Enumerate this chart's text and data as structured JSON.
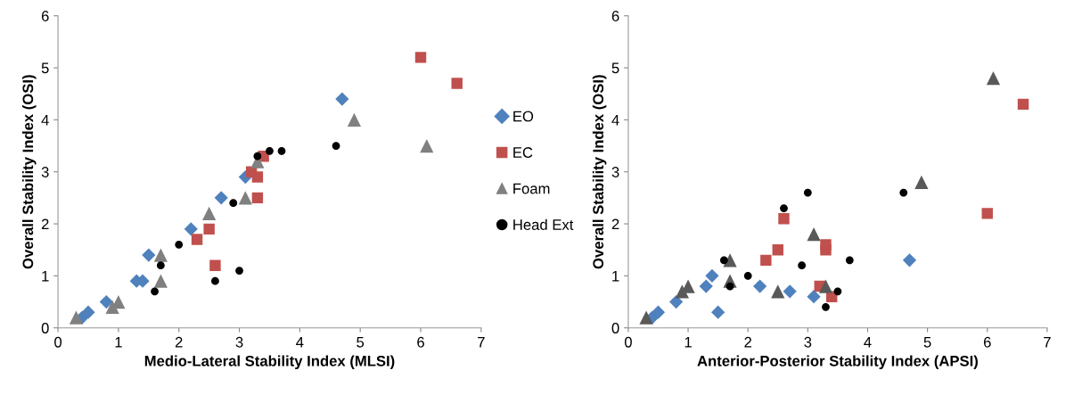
{
  "chart_data": [
    {
      "type": "scatter",
      "xlabel": "Medio-Lateral Stability Index (MLSI)",
      "ylabel": "Overall Stability Index (OSI)",
      "xlim": [
        0,
        7
      ],
      "ylim": [
        0,
        6
      ],
      "xticks": [
        0,
        1,
        2,
        3,
        4,
        5,
        6,
        7
      ],
      "yticks": [
        0,
        1,
        2,
        3,
        4,
        5,
        6
      ],
      "grid": false,
      "legend": "right",
      "series": [
        {
          "name": "EO",
          "color": "#4f81bd",
          "marker": "diamond",
          "x": [
            0.4,
            0.5,
            0.8,
            1.3,
            1.4,
            1.5,
            2.2,
            2.7,
            3.1,
            4.7
          ],
          "values": [
            0.2,
            0.3,
            0.5,
            0.9,
            0.9,
            1.4,
            1.9,
            2.5,
            2.9,
            4.4
          ]
        },
        {
          "name": "EC",
          "color": "#c0504d",
          "marker": "square",
          "x": [
            2.3,
            2.5,
            2.6,
            3.2,
            3.3,
            3.3,
            3.4,
            6.0,
            6.6
          ],
          "values": [
            1.7,
            1.9,
            1.2,
            3.0,
            2.9,
            2.5,
            3.3,
            5.2,
            4.7
          ]
        },
        {
          "name": "Foam",
          "color": "#808080",
          "marker": "triangle",
          "x": [
            0.3,
            0.9,
            1.0,
            1.7,
            1.7,
            2.5,
            3.1,
            3.3,
            4.9,
            6.1
          ],
          "values": [
            0.2,
            0.4,
            0.5,
            1.4,
            0.9,
            2.2,
            2.5,
            3.2,
            4.0,
            3.5
          ]
        },
        {
          "name": "Head Ext",
          "color": "#000000",
          "marker": "circle",
          "x": [
            1.6,
            1.7,
            2.0,
            2.6,
            2.9,
            3.0,
            3.3,
            3.5,
            3.7,
            4.6
          ],
          "values": [
            0.7,
            1.2,
            1.6,
            0.9,
            2.4,
            1.1,
            3.3,
            3.4,
            3.4,
            3.5
          ]
        }
      ]
    },
    {
      "type": "scatter",
      "xlabel": "Anterior-Posterior Stability Index (APSI)",
      "ylabel": "Overall Stability Index (OSI)",
      "xlim": [
        0,
        7
      ],
      "ylim": [
        0,
        6
      ],
      "xticks": [
        0,
        1,
        2,
        3,
        4,
        5,
        6,
        7
      ],
      "yticks": [
        0,
        1,
        2,
        3,
        4,
        5,
        6
      ],
      "grid": false,
      "legend": false,
      "series": [
        {
          "color": "#4f81bd",
          "marker": "diamond",
          "x": [
            0.4,
            0.5,
            0.8,
            1.3,
            1.4,
            1.5,
            2.2,
            2.7,
            3.1,
            4.7
          ],
          "values": [
            0.2,
            0.3,
            0.5,
            0.8,
            1.0,
            0.3,
            0.8,
            0.7,
            0.6,
            1.3
          ]
        },
        {
          "color": "#c0504d",
          "marker": "square",
          "x": [
            2.3,
            2.5,
            2.6,
            3.2,
            3.3,
            3.3,
            3.4,
            6.0,
            6.6
          ],
          "values": [
            1.3,
            1.5,
            2.1,
            0.8,
            1.6,
            1.5,
            0.6,
            2.2,
            4.3
          ]
        },
        {
          "color": "#595959",
          "marker": "triangle",
          "x": [
            0.3,
            0.9,
            1.0,
            1.7,
            1.7,
            2.5,
            3.1,
            3.3,
            4.9,
            6.1
          ],
          "values": [
            0.2,
            0.7,
            0.8,
            1.3,
            0.9,
            0.7,
            1.8,
            0.8,
            2.8,
            4.8
          ]
        },
        {
          "color": "#000000",
          "marker": "circle",
          "x": [
            1.6,
            1.7,
            2.0,
            2.6,
            2.9,
            3.0,
            3.3,
            3.5,
            3.7,
            4.6
          ],
          "values": [
            1.3,
            0.8,
            1.0,
            2.3,
            1.2,
            2.6,
            0.4,
            0.7,
            1.3,
            2.6
          ]
        }
      ]
    }
  ]
}
